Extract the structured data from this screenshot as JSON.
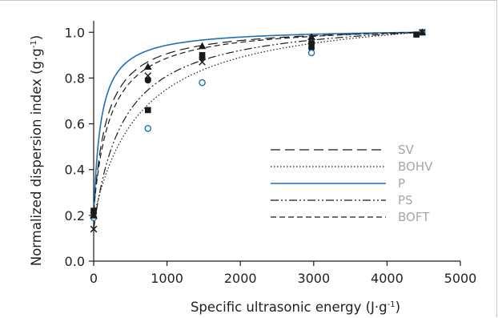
{
  "chart_data": {
    "type": "scatter",
    "xlabel": "Specific ultrasonic energy (J·g",
    "xlabel_sup": "-1",
    "xlabel_end": ")",
    "ylabel": "Normalized dispersion index (g·g",
    "ylabel_sup": "-1",
    "ylabel_end": ")",
    "xlim": [
      0,
      5000
    ],
    "ylim": [
      0.0,
      1.05
    ],
    "x_ticks": [
      0,
      1000,
      2000,
      3000,
      4000,
      5000
    ],
    "y_ticks": [
      0.0,
      0.2,
      0.4,
      0.6,
      0.8,
      1.0
    ],
    "x_tick_labels": [
      "0",
      "1000",
      "2000",
      "3000",
      "4000",
      "5000"
    ],
    "y_tick_labels": [
      "0.0",
      "0.2",
      "0.4",
      "0.6",
      "0.8",
      "1.0"
    ],
    "grid": false,
    "legend_position": "lower-right",
    "series": [
      {
        "name": "SV",
        "marker": "filled-circle",
        "marker_color": "#1a1a1a",
        "line_color": "#1a1a1a",
        "line_style": "dashed-long",
        "points": [
          [
            0,
            0.21
          ],
          [
            740,
            0.79
          ],
          [
            1480,
            0.89
          ],
          [
            2970,
            0.93
          ],
          [
            4480,
            1.0
          ]
        ],
        "fit_half_energy": 180
      },
      {
        "name": "BOHV",
        "marker": "open-circle",
        "marker_color": "#1f6fb5",
        "line_color": "#1a1a1a",
        "line_style": "dotted",
        "points": [
          [
            0,
            0.19
          ],
          [
            740,
            0.58
          ],
          [
            1480,
            0.78
          ],
          [
            2970,
            0.91
          ],
          [
            4480,
            1.0
          ]
        ],
        "fit_half_energy": 650
      },
      {
        "name": "P",
        "marker": "filled-triangle",
        "marker_color": "#1a1a1a",
        "line_color": "#1f6fb5",
        "line_style": "solid",
        "points": [
          [
            0,
            0.2
          ],
          [
            740,
            0.85
          ],
          [
            1480,
            0.94
          ],
          [
            2970,
            0.98
          ],
          [
            4480,
            1.0
          ]
        ],
        "fit_half_energy": 100
      },
      {
        "name": "PS",
        "marker": "cross",
        "marker_color": "#1a1a1a",
        "line_color": "#1a1a1a",
        "line_style": "dash-dot-dot",
        "points": [
          [
            0,
            0.14
          ],
          [
            740,
            0.81
          ],
          [
            1480,
            0.87
          ],
          [
            2970,
            0.96
          ],
          [
            4480,
            1.0
          ]
        ],
        "fit_half_energy": 400
      },
      {
        "name": "BOFT",
        "marker": "filled-square",
        "marker_color": "#1a1a1a",
        "line_color": "#1a1a1a",
        "line_style": "dashed",
        "points": [
          [
            0,
            0.22
          ],
          [
            740,
            0.66
          ],
          [
            1480,
            0.9
          ],
          [
            2970,
            0.95
          ],
          [
            4400,
            0.99
          ]
        ],
        "fit_half_energy": 230
      }
    ]
  },
  "colors": {
    "axis": "#1a1a1a",
    "legend_text": "#a6a6a6",
    "blue": "#1f6fb5"
  }
}
